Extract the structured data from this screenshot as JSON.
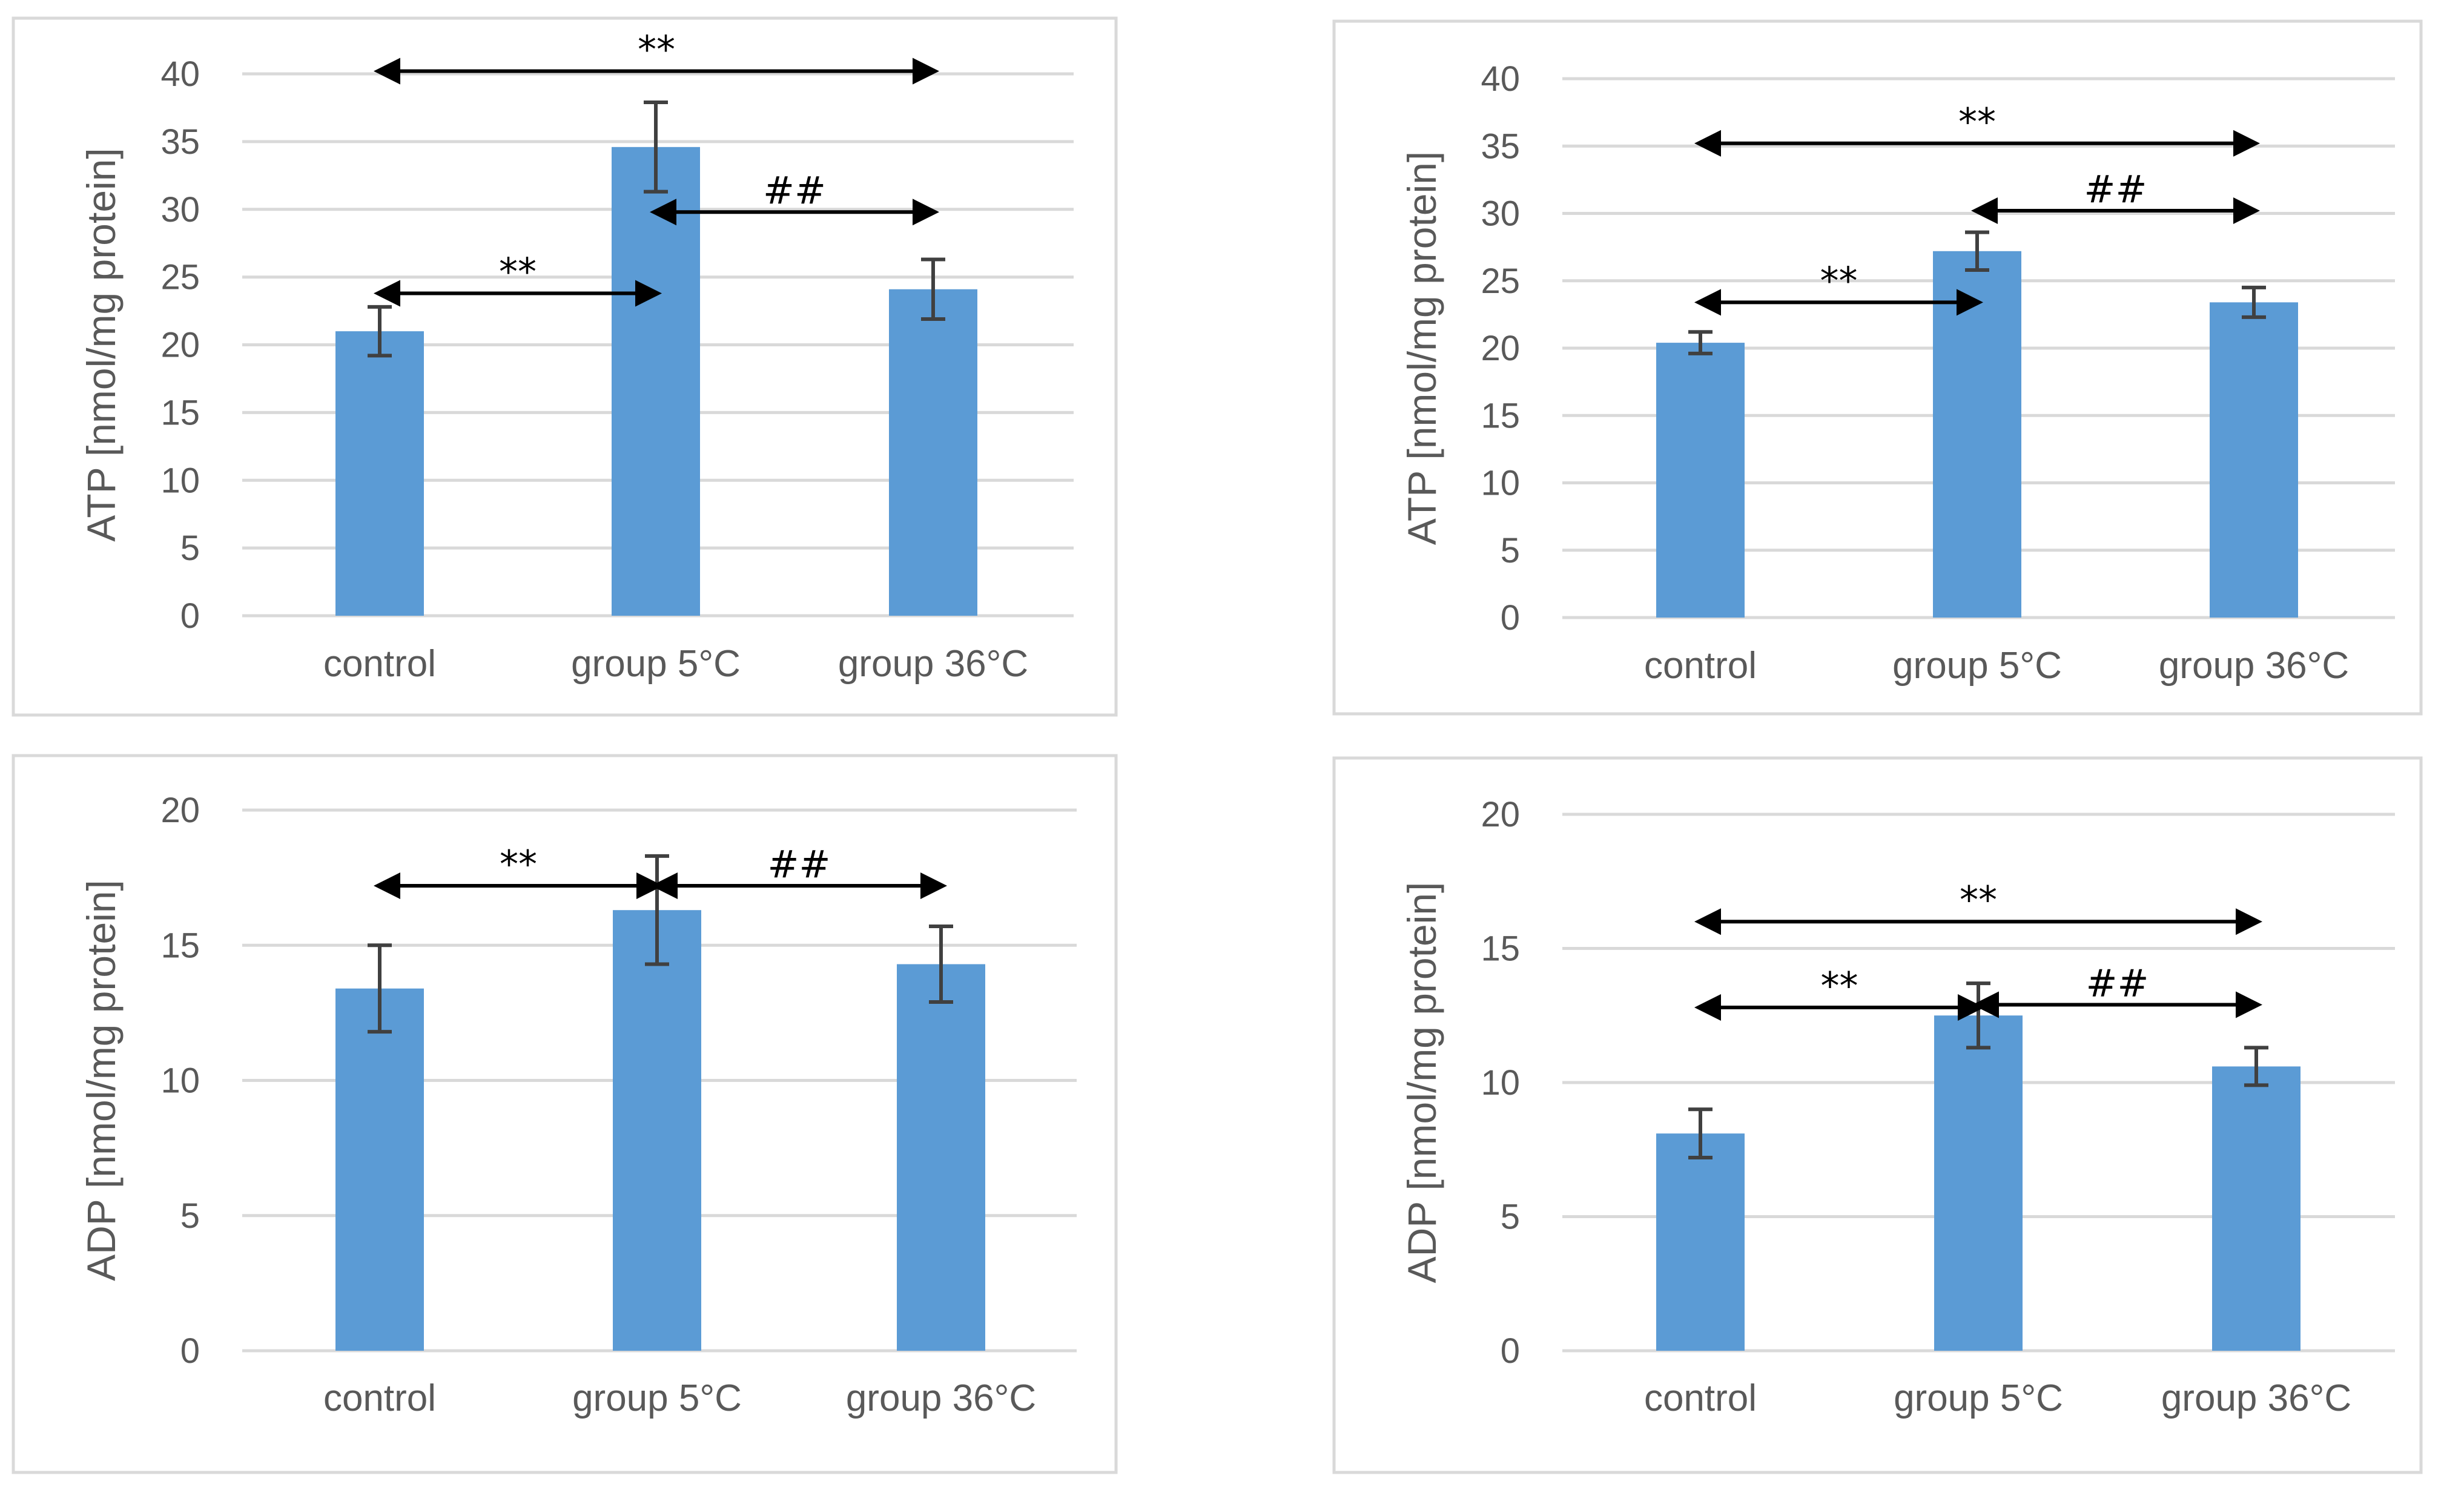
{
  "figure": {
    "panel_count": 4
  },
  "colors": {
    "bar": "#5b9bd5",
    "gridline": "#d9d9d9",
    "error_bar": "#404040",
    "annotation": "#000000",
    "text": "#595959"
  },
  "chart_data": [
    {
      "panel": "top-left",
      "type": "bar",
      "ylabel": "ATP [nmol/mg protein]",
      "ylim": [
        0,
        40
      ],
      "yticks": [
        0,
        5,
        10,
        15,
        20,
        25,
        30,
        35,
        40
      ],
      "categories": [
        "control",
        "group 5°C",
        "group 36°C"
      ],
      "values": [
        21.0,
        34.6,
        24.1
      ],
      "errors": [
        1.8,
        3.3,
        2.2
      ],
      "annotations": [
        {
          "label": "**",
          "from": 0,
          "to": 2,
          "y": 40.2
        },
        {
          "label": "**",
          "from": 0,
          "to": 1,
          "y": 23.8
        },
        {
          "label": "##",
          "from": 1,
          "to": 2,
          "y": 29.8
        }
      ]
    },
    {
      "panel": "top-right",
      "type": "bar",
      "ylabel": "ATP [nmol/mg protein]",
      "ylim": [
        0,
        40
      ],
      "yticks": [
        0,
        5,
        10,
        15,
        20,
        25,
        30,
        35,
        40
      ],
      "categories": [
        "control",
        "group 5°C",
        "group 36°C"
      ],
      "values": [
        20.4,
        27.2,
        23.4
      ],
      "errors": [
        0.8,
        1.4,
        1.1
      ],
      "annotations": [
        {
          "label": "**",
          "from": 0,
          "to": 2,
          "y": 35.2
        },
        {
          "label": "**",
          "from": 0,
          "to": 1,
          "y": 23.4
        },
        {
          "label": "##",
          "from": 1,
          "to": 2,
          "y": 30.2
        }
      ]
    },
    {
      "panel": "bottom-left",
      "type": "bar",
      "ylabel": "ADP [nmol/mg protein]",
      "ylim": [
        0,
        20
      ],
      "yticks": [
        0,
        5,
        10,
        15,
        20
      ],
      "categories": [
        "control",
        "group 5°C",
        "group 36°C"
      ],
      "values": [
        13.4,
        16.3,
        14.3
      ],
      "errors": [
        1.6,
        2.0,
        1.4
      ],
      "annotations": [
        {
          "label": "**",
          "from": 0,
          "to": 1,
          "y": 17.2
        },
        {
          "label": "##",
          "from": 1,
          "to": 2,
          "y": 17.2
        }
      ]
    },
    {
      "panel": "bottom-right",
      "type": "bar",
      "ylabel": "ADP [nmol/mg protein]",
      "ylim": [
        0,
        20
      ],
      "yticks": [
        0,
        5,
        10,
        15,
        20
      ],
      "categories": [
        "control",
        "group 5°C",
        "group 36°C"
      ],
      "values": [
        8.1,
        12.5,
        10.6
      ],
      "errors": [
        0.9,
        1.2,
        0.7
      ],
      "annotations": [
        {
          "label": "**",
          "from": 0,
          "to": 2,
          "y": 16.0
        },
        {
          "label": "**",
          "from": 0,
          "to": 1,
          "y": 12.8
        },
        {
          "label": "##",
          "from": 1,
          "to": 2,
          "y": 12.9
        }
      ]
    }
  ]
}
